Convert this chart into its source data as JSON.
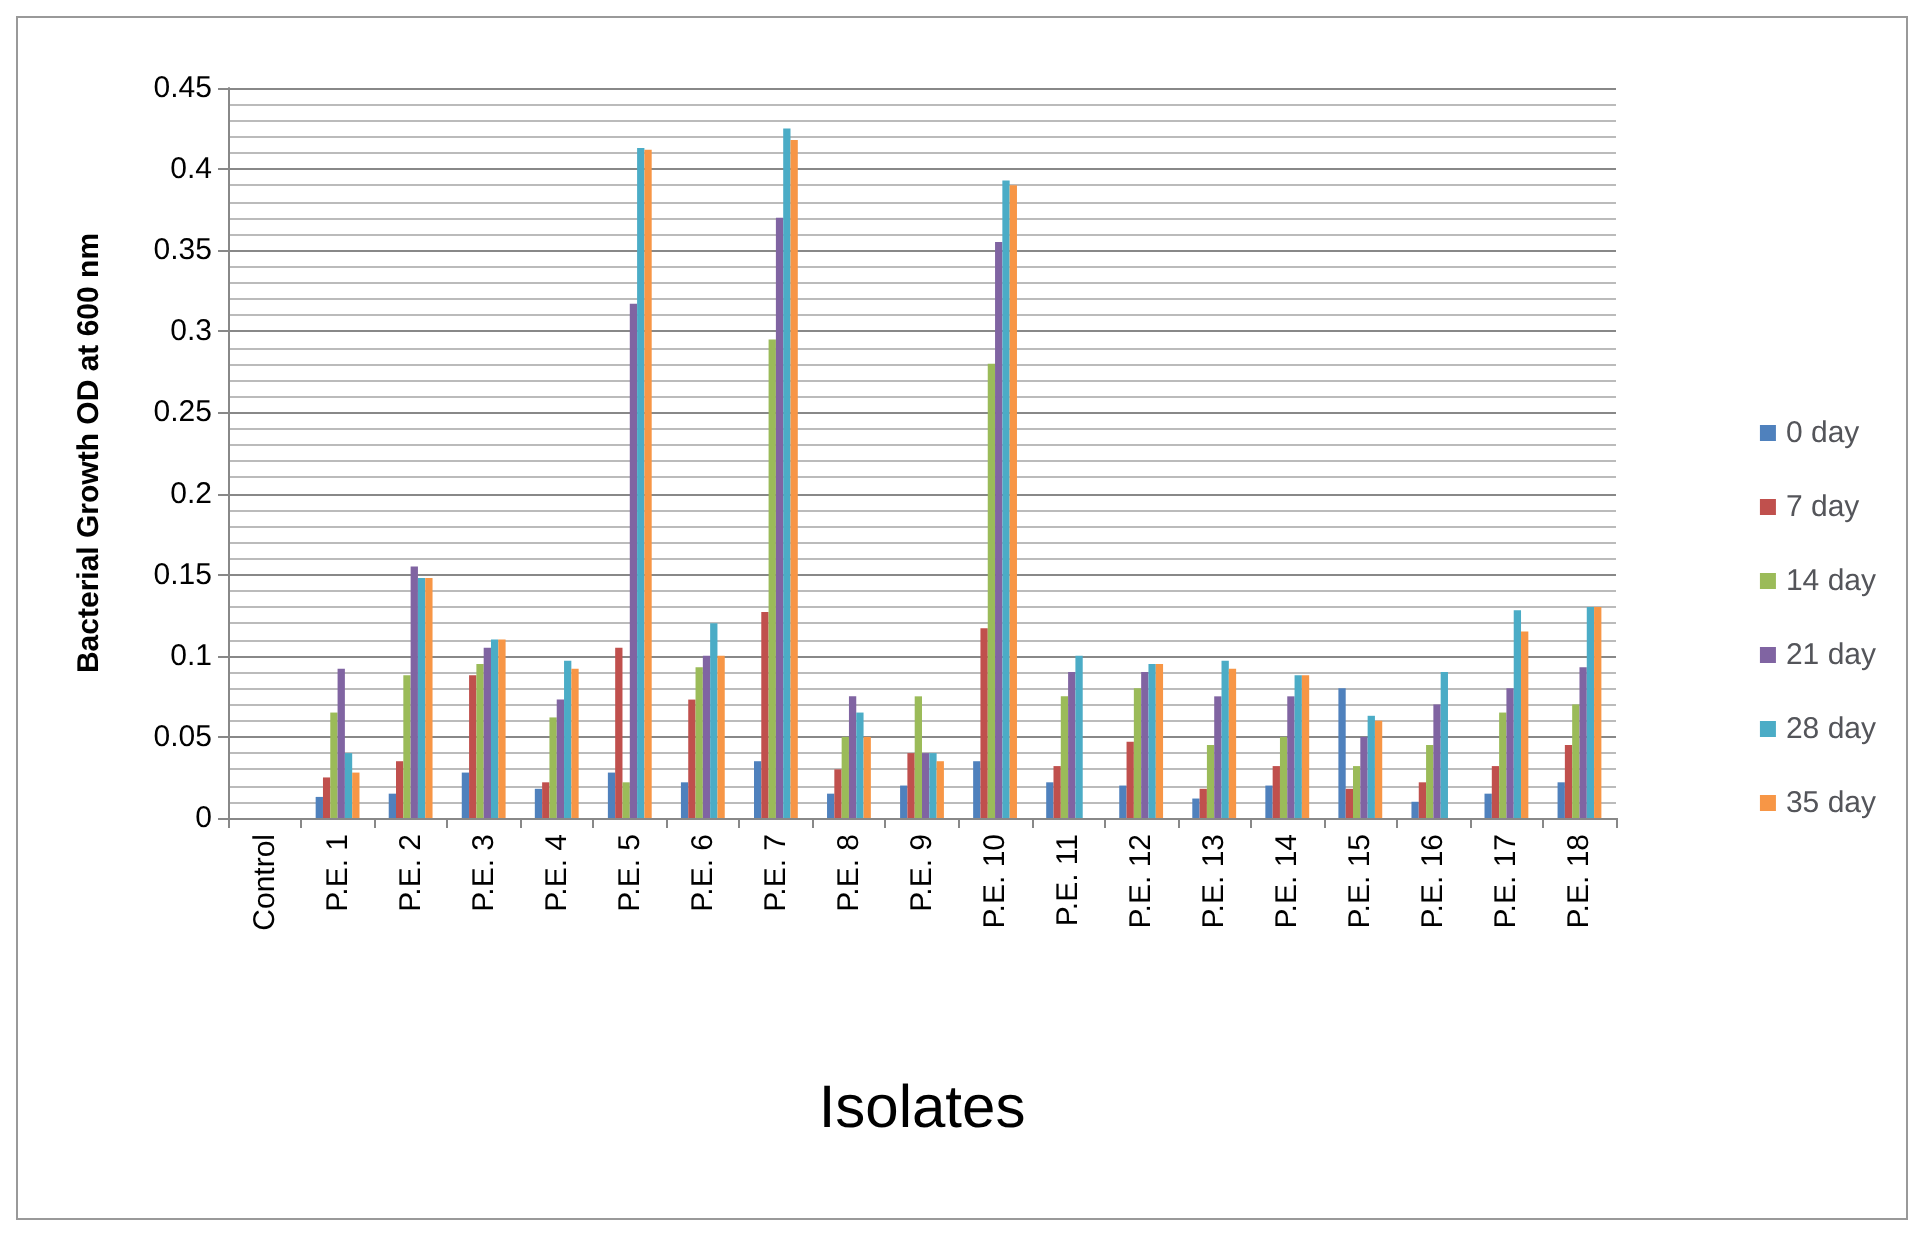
{
  "chart_data": {
    "type": "bar",
    "xlabel": "Isolates",
    "ylabel": "Bacterial Growth OD at 600 nm",
    "categories": [
      "Control",
      "P.E. 1",
      "P.E. 2",
      "P.E. 3",
      "P.E. 4",
      "P.E. 5",
      "P.E. 6",
      "P.E. 7",
      "P.E. 8",
      "P.E. 9",
      "P.E. 10",
      "P.E. 11",
      "P.E. 12",
      "P.E. 13",
      "P.E. 14",
      "P.E. 15",
      "P.E. 16",
      "P.E. 17",
      "P.E. 18"
    ],
    "series": [
      {
        "name": "0 day",
        "color": "#4f81bd",
        "values": [
          0,
          0.013,
          0.015,
          0.028,
          0.018,
          0.028,
          0.022,
          0.035,
          0.015,
          0.02,
          0.035,
          0.022,
          0.02,
          0.012,
          0.02,
          0.08,
          0.01,
          0.015,
          0.022
        ]
      },
      {
        "name": "7 day",
        "color": "#c0504d",
        "values": [
          0,
          0.025,
          0.035,
          0.088,
          0.022,
          0.105,
          0.073,
          0.127,
          0.03,
          0.04,
          0.117,
          0.032,
          0.047,
          0.018,
          0.032,
          0.018,
          0.022,
          0.032,
          0.045
        ]
      },
      {
        "name": "14 day",
        "color": "#9bbb59",
        "values": [
          0,
          0.065,
          0.088,
          0.095,
          0.062,
          0.022,
          0.093,
          0.295,
          0.05,
          0.075,
          0.28,
          0.075,
          0.08,
          0.045,
          0.05,
          0.032,
          0.045,
          0.065,
          0.07
        ]
      },
      {
        "name": "21 day",
        "color": "#8064a2",
        "values": [
          0,
          0.092,
          0.155,
          0.105,
          0.073,
          0.317,
          0.1,
          0.37,
          0.075,
          0.04,
          0.355,
          0.09,
          0.09,
          0.075,
          0.075,
          0.05,
          0.07,
          0.08,
          0.093
        ]
      },
      {
        "name": "28 day",
        "color": "#4bacc6",
        "values": [
          0,
          0.04,
          0.148,
          0.11,
          0.097,
          0.413,
          0.12,
          0.425,
          0.065,
          0.04,
          0.393,
          0.1,
          0.095,
          0.097,
          0.088,
          0.063,
          0.09,
          0.128,
          0.13
        ]
      },
      {
        "name": "35 day",
        "color": "#f79646",
        "values": [
          0,
          0.028,
          0.148,
          0.11,
          0.092,
          0.412,
          0.1,
          0.418,
          0.05,
          0.035,
          0.39,
          0,
          0.095,
          0.092,
          0.088,
          0.06,
          0,
          0.115,
          0.13
        ]
      }
    ],
    "ylim": [
      0,
      0.45
    ],
    "yticks": [
      0,
      0.05,
      0.1,
      0.15,
      0.2,
      0.25,
      0.3,
      0.35,
      0.4,
      0.45
    ],
    "grid": "y",
    "legend": "right"
  }
}
